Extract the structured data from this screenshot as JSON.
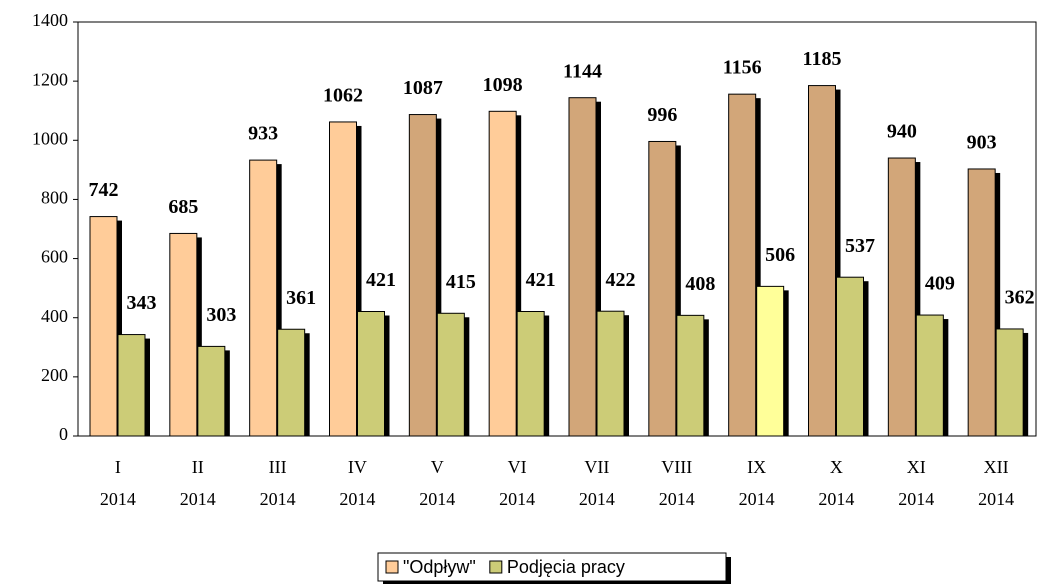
{
  "chart_data": {
    "type": "bar",
    "categories": [
      [
        "I",
        "2014"
      ],
      [
        "II",
        "2014"
      ],
      [
        "III",
        "2014"
      ],
      [
        "IV",
        "2014"
      ],
      [
        "V",
        "2014"
      ],
      [
        "VI",
        "2014"
      ],
      [
        "VII",
        "2014"
      ],
      [
        "VIII",
        "2014"
      ],
      [
        "IX",
        "2014"
      ],
      [
        "X",
        "2014"
      ],
      [
        "XI",
        "2014"
      ],
      [
        "XII",
        "2014"
      ]
    ],
    "series": [
      {
        "name": "\"Odpływ\"",
        "color": "#ffcc99",
        "colors": [
          "#ffcc99",
          "#ffcc99",
          "#ffcc99",
          "#ffcc99",
          "#d2a679",
          "#ffcc99",
          "#d2a679",
          "#d2a679",
          "#d2a679",
          "#d2a679",
          "#d2a679",
          "#d2a679"
        ],
        "values": [
          742,
          685,
          933,
          1062,
          1087,
          1098,
          1144,
          996,
          1156,
          1185,
          940,
          903
        ]
      },
      {
        "name": "Podjęcia pracy",
        "color": "#cccc77",
        "colors": [
          "#cccc77",
          "#cccc77",
          "#cccc77",
          "#cccc77",
          "#cccc77",
          "#cccc77",
          "#cccc77",
          "#cccc77",
          "#ffff99",
          "#cccc77",
          "#cccc77",
          "#cccc77"
        ],
        "values": [
          343,
          303,
          361,
          421,
          415,
          421,
          422,
          408,
          506,
          537,
          409,
          362
        ]
      }
    ],
    "ylim": [
      0,
      1400
    ],
    "yticks": [
      0,
      200,
      400,
      600,
      800,
      1000,
      1200,
      1400
    ],
    "legend": "bottom"
  }
}
